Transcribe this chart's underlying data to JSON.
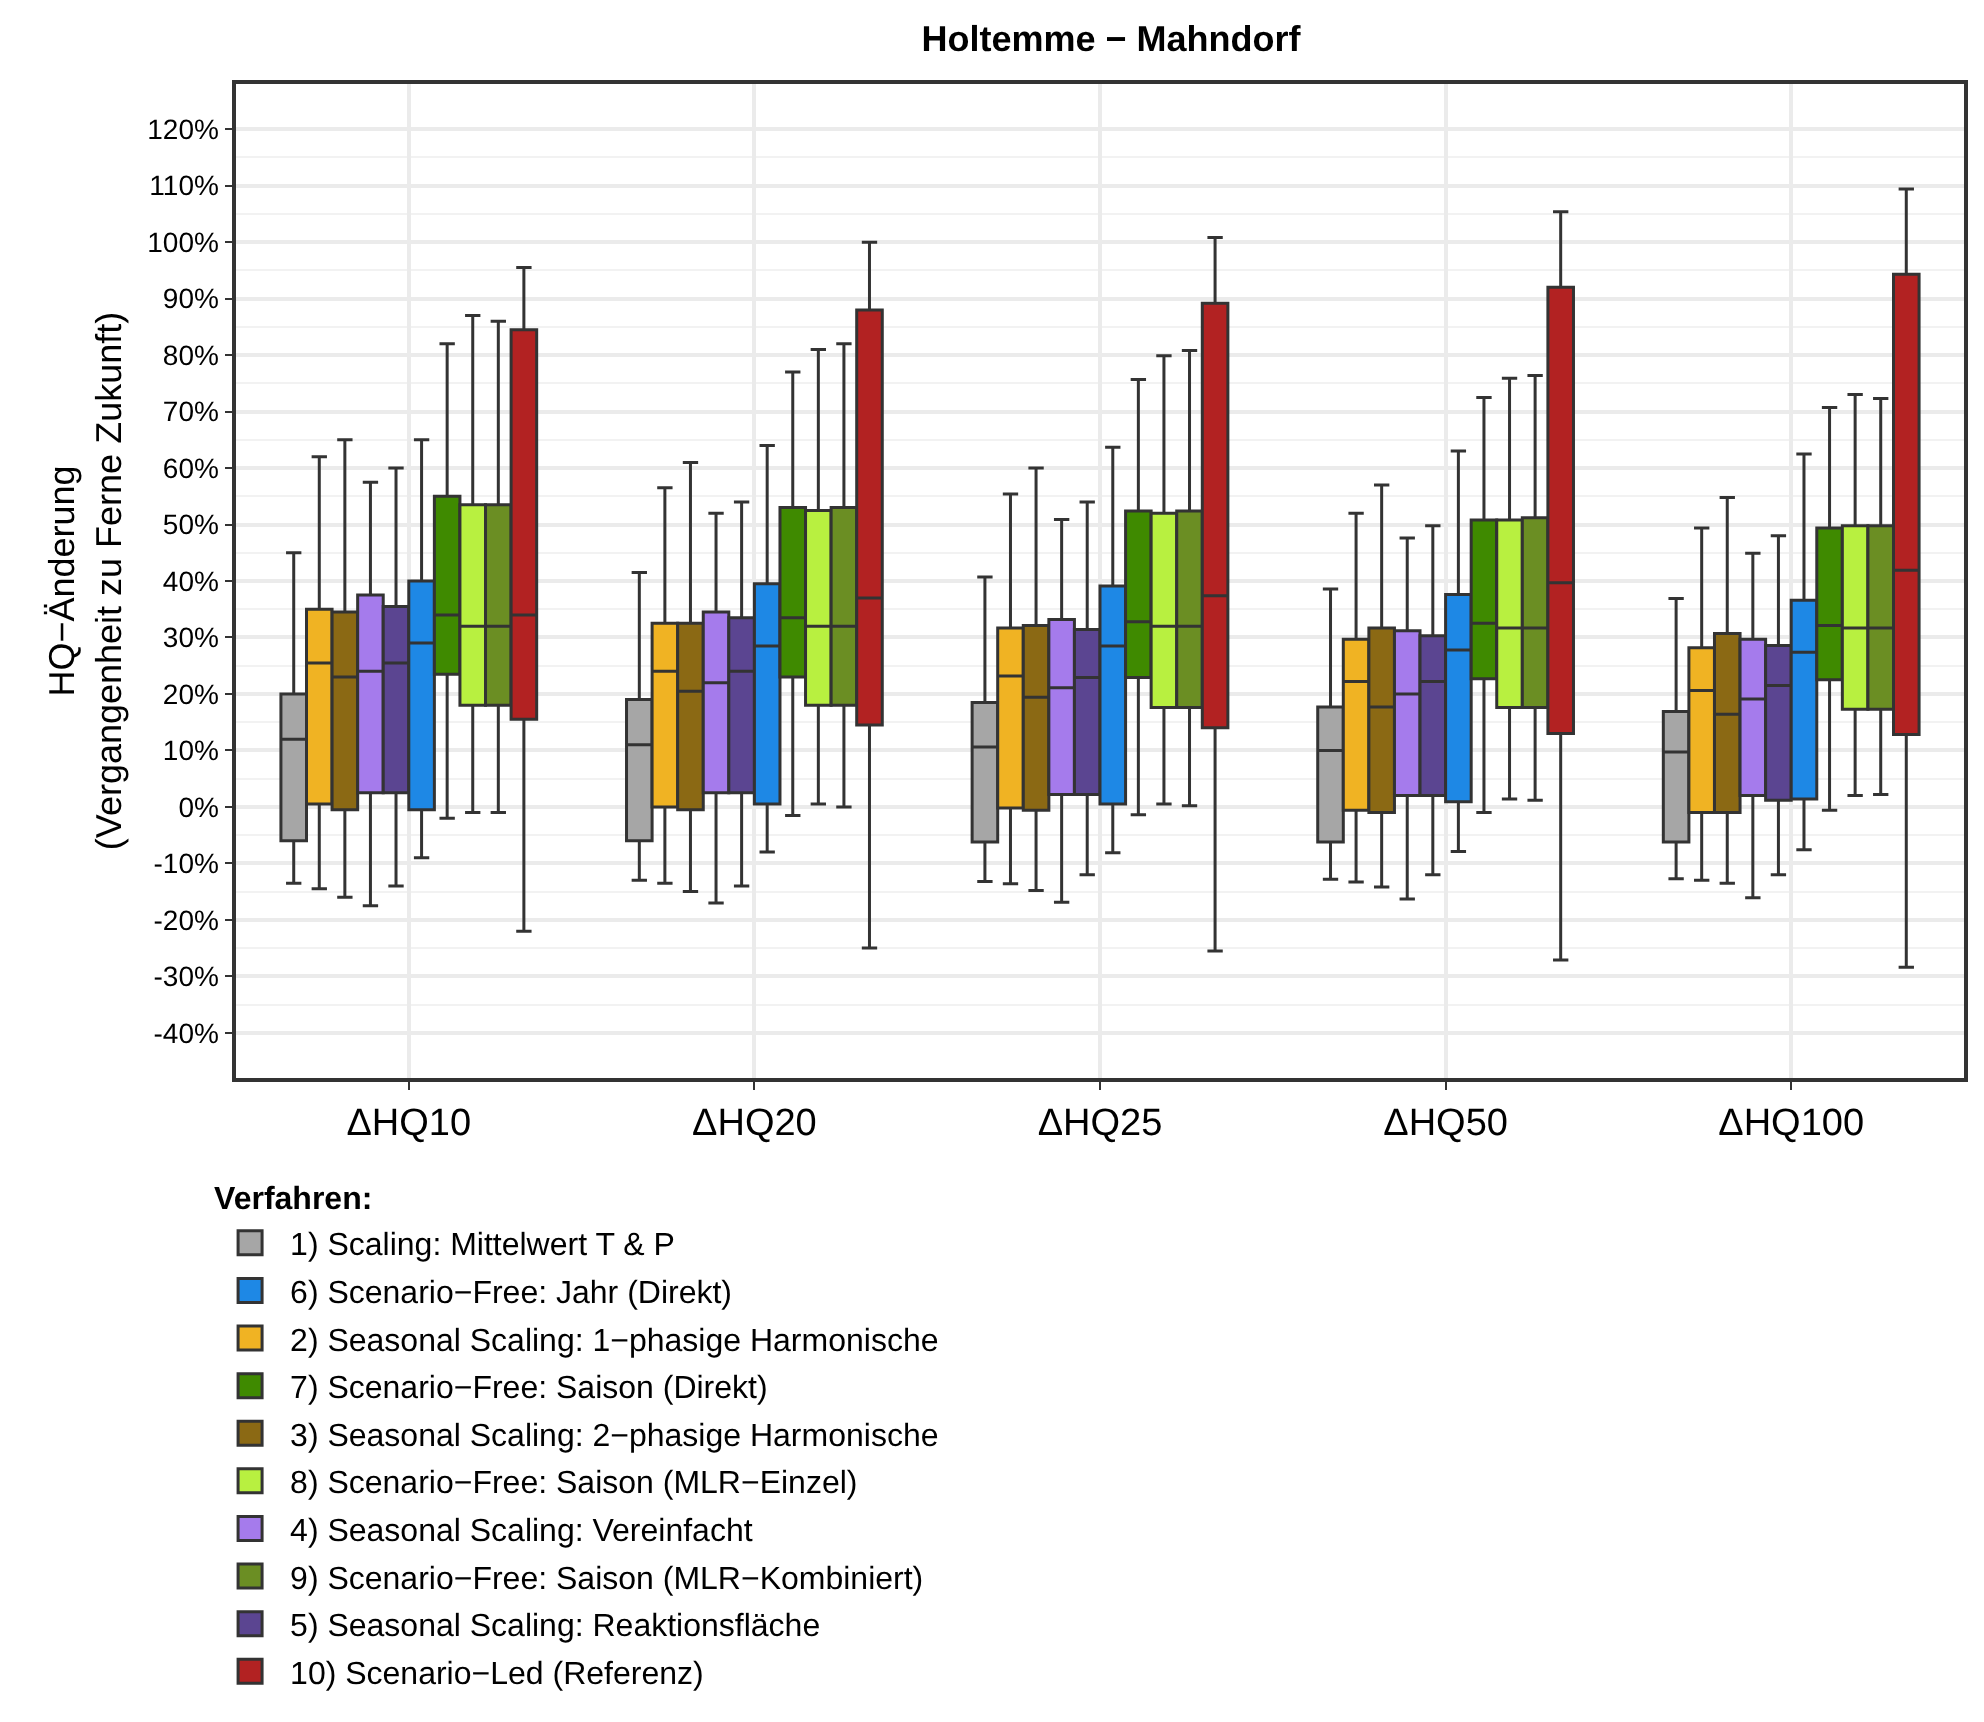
{
  "chart_data": {
    "type": "box",
    "title": "Holtemme − Mahndorf",
    "ylabel": "HQ−Änderung\n(Vergangenheit zu Ferne Zukunft)",
    "legend_title": "Verfahren:",
    "categories": [
      "ΔHQ10",
      "ΔHQ20",
      "ΔHQ25",
      "ΔHQ50",
      "ΔHQ100"
    ],
    "ylim": [
      -48,
      128
    ],
    "yticks": [
      {
        "value": -40,
        "label": "-40%"
      },
      {
        "value": -30,
        "label": "-30%"
      },
      {
        "value": -20,
        "label": "-20%"
      },
      {
        "value": -10,
        "label": "-10%"
      },
      {
        "value": 0,
        "label": "0%"
      },
      {
        "value": 10,
        "label": "10%"
      },
      {
        "value": 20,
        "label": "20%"
      },
      {
        "value": 30,
        "label": "30%"
      },
      {
        "value": 40,
        "label": "40%"
      },
      {
        "value": 50,
        "label": "50%"
      },
      {
        "value": 60,
        "label": "60%"
      },
      {
        "value": 70,
        "label": "70%"
      },
      {
        "value": 80,
        "label": "80%"
      },
      {
        "value": 90,
        "label": "90%"
      },
      {
        "value": 100,
        "label": "100%"
      },
      {
        "value": 110,
        "label": "110%"
      },
      {
        "value": 120,
        "label": "120%"
      }
    ],
    "grid": true,
    "legend": "bottom",
    "series": [
      {
        "name": "1) Scaling: Mittelwert T & P",
        "color": "#a6a6a6",
        "boxes": [
          {
            "low": -13.5,
            "q1": -6,
            "median": 12,
            "q3": 20,
            "high": 45
          },
          {
            "low": -13,
            "q1": -6,
            "median": 11,
            "q3": 19,
            "high": 41.5
          },
          {
            "low": -13.2,
            "q1": -6.2,
            "median": 10.6,
            "q3": 18.5,
            "high": 40.7
          },
          {
            "low": -12.8,
            "q1": -6.2,
            "median": 10,
            "q3": 17.7,
            "high": 38.6
          },
          {
            "low": -12.7,
            "q1": -6.2,
            "median": 9.7,
            "q3": 16.9,
            "high": 36.9
          }
        ]
      },
      {
        "name": "2) Seasonal Scaling: 1−phasige Harmonische",
        "color": "#f0b323",
        "boxes": [
          {
            "low": -14.5,
            "q1": 0.5,
            "median": 25.5,
            "q3": 35,
            "high": 62
          },
          {
            "low": -13.5,
            "q1": 0,
            "median": 24,
            "q3": 32.5,
            "high": 56.5
          },
          {
            "low": -13.6,
            "q1": -0.2,
            "median": 23.2,
            "q3": 31.7,
            "high": 55.4
          },
          {
            "low": -13.3,
            "q1": -0.6,
            "median": 22.2,
            "q3": 29.7,
            "high": 52
          },
          {
            "low": -13,
            "q1": -1,
            "median": 20.6,
            "q3": 28.2,
            "high": 49.4
          }
        ]
      },
      {
        "name": "3) Seasonal Scaling: 2−phasige Harmonische",
        "color": "#8b6914",
        "boxes": [
          {
            "low": -16,
            "q1": -0.5,
            "median": 23,
            "q3": 34.5,
            "high": 65
          },
          {
            "low": -15,
            "q1": -0.5,
            "median": 20.5,
            "q3": 32.5,
            "high": 61
          },
          {
            "low": -14.8,
            "q1": -0.6,
            "median": 19.4,
            "q3": 32.1,
            "high": 60
          },
          {
            "low": -14.2,
            "q1": -1,
            "median": 17.7,
            "q3": 31.7,
            "high": 57
          },
          {
            "low": -13.5,
            "q1": -1,
            "median": 16.4,
            "q3": 30.7,
            "high": 54.8
          }
        ]
      },
      {
        "name": "4) Seasonal Scaling: Vereinfacht",
        "color": "#a57bec",
        "boxes": [
          {
            "low": -17.5,
            "q1": 2.5,
            "median": 24,
            "q3": 37.5,
            "high": 57.5
          },
          {
            "low": -17,
            "q1": 2.5,
            "median": 22,
            "q3": 34.5,
            "high": 52
          },
          {
            "low": -16.9,
            "q1": 2.2,
            "median": 21.1,
            "q3": 33.2,
            "high": 50.9
          },
          {
            "low": -16.3,
            "q1": 2,
            "median": 20,
            "q3": 31.2,
            "high": 47.6
          },
          {
            "low": -16.1,
            "q1": 2,
            "median": 19.1,
            "q3": 29.7,
            "high": 44.9
          }
        ]
      },
      {
        "name": "5) Seasonal Scaling: Reaktionsfläche",
        "color": "#5b4591",
        "boxes": [
          {
            "low": -14,
            "q1": 2.5,
            "median": 25.5,
            "q3": 35.5,
            "high": 60
          },
          {
            "low": -14,
            "q1": 2.5,
            "median": 24,
            "q3": 33.5,
            "high": 54
          },
          {
            "low": -12,
            "q1": 2.2,
            "median": 22.9,
            "q3": 31.4,
            "high": 54
          },
          {
            "low": -12,
            "q1": 2,
            "median": 22.2,
            "q3": 30.3,
            "high": 49.8
          },
          {
            "low": -12,
            "q1": 1.2,
            "median": 21.5,
            "q3": 28.6,
            "high": 48
          }
        ]
      },
      {
        "name": "6) Scenario−Free: Jahr (Direkt)",
        "color": "#1e88e5",
        "boxes": [
          {
            "low": -9,
            "q1": -0.5,
            "median": 29,
            "q3": 40,
            "high": 65
          },
          {
            "low": -8,
            "q1": 0.5,
            "median": 28.5,
            "q3": 39.5,
            "high": 64
          },
          {
            "low": -8.1,
            "q1": 0.5,
            "median": 28.5,
            "q3": 39.1,
            "high": 63.7
          },
          {
            "low": -7.9,
            "q1": 0.9,
            "median": 27.8,
            "q3": 37.6,
            "high": 63
          },
          {
            "low": -7.6,
            "q1": 1.4,
            "median": 27.4,
            "q3": 36.6,
            "high": 62.5
          }
        ]
      },
      {
        "name": "7) Scenario−Free: Saison (Direkt)",
        "color": "#3f8a00",
        "boxes": [
          {
            "low": -2,
            "q1": 23.5,
            "median": 34,
            "q3": 55,
            "high": 82
          },
          {
            "low": -1.5,
            "q1": 23,
            "median": 33.5,
            "q3": 53,
            "high": 77
          },
          {
            "low": -1.4,
            "q1": 22.9,
            "median": 32.8,
            "q3": 52.4,
            "high": 75.7
          },
          {
            "low": -1,
            "q1": 22.7,
            "median": 32.5,
            "q3": 50.8,
            "high": 72.5
          },
          {
            "low": -0.6,
            "q1": 22.5,
            "median": 32.1,
            "q3": 49.4,
            "high": 70.7
          }
        ]
      },
      {
        "name": "8) Scenario−Free: Saison (MLR−Einzel)",
        "color": "#b8f040",
        "boxes": [
          {
            "low": -1,
            "q1": 18,
            "median": 32,
            "q3": 53.5,
            "high": 87
          },
          {
            "low": 0.5,
            "q1": 18,
            "median": 32,
            "q3": 52.5,
            "high": 81
          },
          {
            "low": 0.5,
            "q1": 17.6,
            "median": 32,
            "q3": 52,
            "high": 79.9
          },
          {
            "low": 1.4,
            "q1": 17.6,
            "median": 31.7,
            "q3": 50.8,
            "high": 75.9
          },
          {
            "low": 2,
            "q1": 17.3,
            "median": 31.7,
            "q3": 49.8,
            "high": 73
          }
        ]
      },
      {
        "name": "9) Scenario−Free: Saison (MLR−Kombiniert)",
        "color": "#6b8e23",
        "boxes": [
          {
            "low": -1,
            "q1": 18,
            "median": 32,
            "q3": 53.5,
            "high": 86
          },
          {
            "low": 0,
            "q1": 18,
            "median": 32,
            "q3": 53,
            "high": 82
          },
          {
            "low": 0.2,
            "q1": 17.6,
            "median": 32,
            "q3": 52.4,
            "high": 80.8
          },
          {
            "low": 1.2,
            "q1": 17.6,
            "median": 31.7,
            "q3": 51.2,
            "high": 76.4
          },
          {
            "low": 2.2,
            "q1": 17.3,
            "median": 31.7,
            "q3": 49.8,
            "high": 72.3
          }
        ]
      },
      {
        "name": "10) Scenario−Led (Referenz)",
        "color": "#b22222",
        "boxes": [
          {
            "low": -22,
            "q1": 15.5,
            "median": 34,
            "q3": 84.5,
            "high": 95.5
          },
          {
            "low": -25,
            "q1": 14.5,
            "median": 37,
            "q3": 88,
            "high": 100
          },
          {
            "low": -25.5,
            "q1": 14,
            "median": 37.4,
            "q3": 89.2,
            "high": 100.8
          },
          {
            "low": -27.1,
            "q1": 13,
            "median": 39.7,
            "q3": 92,
            "high": 105.4
          },
          {
            "low": -28.4,
            "q1": 12.8,
            "median": 41.9,
            "q3": 94.3,
            "high": 109.4
          }
        ]
      }
    ]
  }
}
